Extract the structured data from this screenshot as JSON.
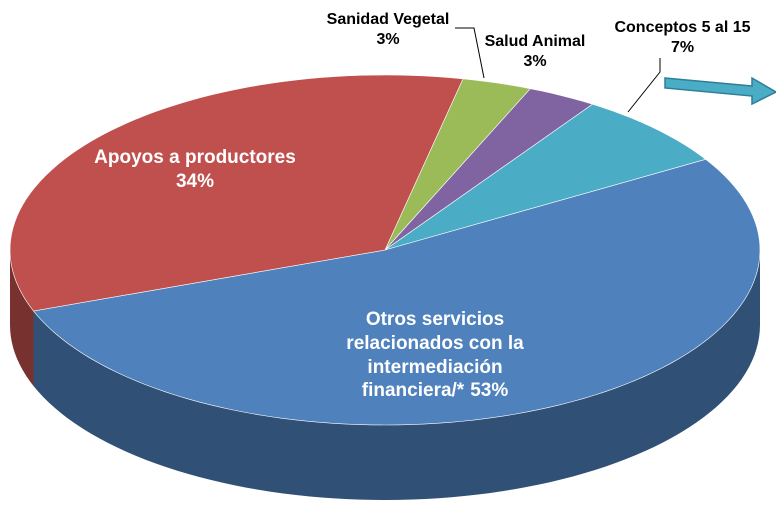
{
  "chart_data": {
    "type": "pie",
    "categories": [
      "Sanidad Vegetal",
      "Salud Animal",
      "Conceptos 5 al 15",
      "Otros servicios relacionados con la intermediación financiera/*",
      "Apoyos a productores"
    ],
    "values": [
      3,
      3,
      7,
      53,
      34
    ],
    "value_labels": [
      "3%",
      "3%",
      "7%",
      "53%",
      "34%"
    ],
    "colors": [
      "#9bbb59",
      "#8064a2",
      "#4bacc6",
      "#4f81bd",
      "#c0504d"
    ]
  }
}
